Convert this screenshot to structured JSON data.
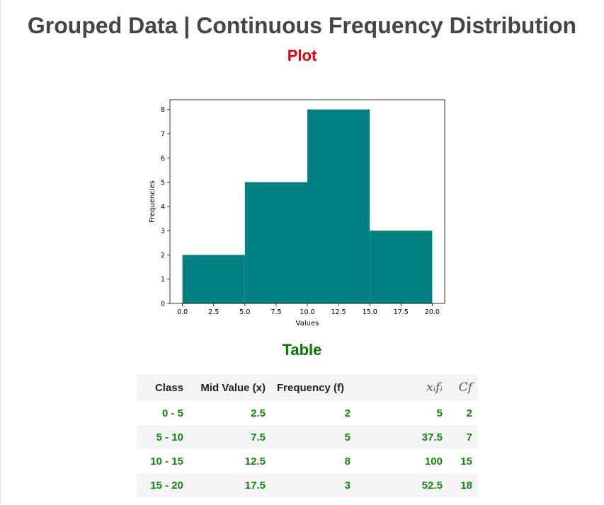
{
  "page": {
    "title": "Grouped Data | Continuous Frequency Distribution",
    "plot_heading": "Plot",
    "table_heading": "Table"
  },
  "colors": {
    "bar": "#008080",
    "title": "#454545",
    "plot_heading": "#e00000",
    "table_heading": "#007a00",
    "table_values": "#0a8a0a"
  },
  "chart_data": {
    "type": "bar",
    "subtype": "histogram",
    "bins": [
      {
        "start": 0,
        "end": 5,
        "value": 2
      },
      {
        "start": 5,
        "end": 10,
        "value": 5
      },
      {
        "start": 10,
        "end": 15,
        "value": 8
      },
      {
        "start": 15,
        "end": 20,
        "value": 3
      }
    ],
    "xlabel": "Values",
    "ylabel": "Frequencies",
    "xlim": [
      -1,
      21
    ],
    "ylim": [
      0,
      8.4
    ],
    "xticks": [
      0,
      2.5,
      5,
      7.5,
      10,
      12.5,
      15,
      17.5,
      20
    ],
    "xtick_labels": [
      "0.0",
      "2.5",
      "5.0",
      "7.5",
      "10.0",
      "12.5",
      "15.0",
      "17.5",
      "20.0"
    ],
    "yticks": [
      0,
      1,
      2,
      3,
      4,
      5,
      6,
      7,
      8
    ],
    "ytick_labels": [
      "0",
      "1",
      "2",
      "3",
      "4",
      "5",
      "6",
      "7",
      "8"
    ],
    "grid": false
  },
  "table": {
    "headers": [
      "Class",
      "Mid Value (x)",
      "Frequency (f)",
      "xᵢfᵢ",
      "Cf"
    ],
    "rows": [
      [
        "0 - 5",
        "2.5",
        "2",
        "5",
        "2"
      ],
      [
        "5 - 10",
        "7.5",
        "5",
        "37.5",
        "7"
      ],
      [
        "10 - 15",
        "12.5",
        "8",
        "100",
        "15"
      ],
      [
        "15 - 20",
        "17.5",
        "3",
        "52.5",
        "18"
      ]
    ]
  }
}
